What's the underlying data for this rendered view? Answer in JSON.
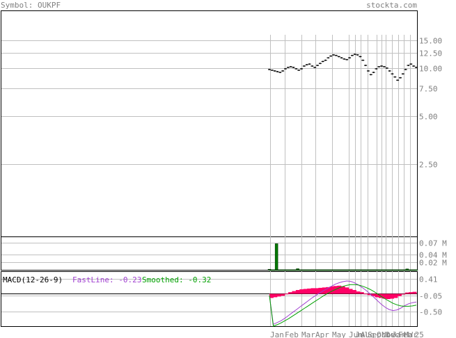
{
  "header": {
    "symbol_text": "Symbol: OUKPF",
    "site_text": "stockta.com"
  },
  "colors": {
    "frame": "#000000",
    "grid": "#c0c0c0",
    "header_text": "#808080",
    "price": "#000000",
    "volume_up": "#007700",
    "macd_hist": "#ff0066",
    "fast_line": "#a040d0",
    "smoothed_line": "#00a000"
  },
  "chart_data": [
    {
      "type": "line",
      "panel": "price",
      "y_ticks": [
        "15.00",
        "12.50",
        "10.00",
        "7.50",
        "5.00",
        "2.50"
      ],
      "y_tick_values": [
        15.0,
        12.5,
        10.0,
        7.5,
        5.0,
        2.5
      ],
      "ylim": [
        0.9,
        16.5
      ],
      "y_scale": "log",
      "x_labels": [
        "Jan",
        "Feb",
        "Mar",
        "Apr",
        "May",
        "Jun",
        "Jul",
        "Aug",
        "Sep",
        "Oct",
        "Nov",
        "Dec",
        "Jan",
        "Feb",
        "Mar",
        "'25"
      ],
      "series": [
        {
          "values": [
            9.8,
            9.7,
            9.6,
            9.5,
            9.4,
            9.6,
            9.9,
            10.1,
            10.2,
            10.1,
            9.9,
            9.7,
            9.9,
            10.3,
            10.5,
            10.6,
            10.3,
            10.1,
            10.4,
            10.7,
            11.0,
            11.2,
            11.6,
            11.9,
            12.1,
            12.0,
            11.8,
            11.6,
            11.4,
            11.3,
            11.6,
            12.0,
            12.2,
            12.1,
            11.8,
            11.2,
            10.4,
            9.6,
            9.1,
            9.4,
            9.9,
            10.2,
            10.3,
            10.2,
            10.0,
            9.6,
            9.2,
            8.8,
            8.4,
            8.7,
            9.2,
            9.8,
            10.4,
            10.6,
            10.3,
            10.1
          ]
        }
      ]
    },
    {
      "type": "bar",
      "panel": "volume",
      "y_ticks": [
        "0.07 M",
        "0.04 M",
        "0.02 M"
      ],
      "y_tick_values": [
        0.07,
        0.04,
        0.02
      ],
      "ylim": [
        0,
        0.085
      ],
      "values": [
        0.0015,
        0.0002,
        0.0002,
        0.0002,
        0.0002,
        0.0002,
        0.0002,
        0.0002,
        0.0002,
        0.0002,
        0.068,
        0.0002,
        0.0002,
        0.0002,
        0.0002,
        0.0002,
        0.0002,
        0.0002,
        0.0002,
        0.0002,
        0.0002,
        0.0002,
        0.0002,
        0.0002,
        0.0002,
        0.0002,
        0.0002,
        0.0002,
        0.0002,
        0.0002,
        0.0002,
        0.0002,
        0.0002,
        0.0002,
        0.0002,
        0.0002,
        0.0002,
        0.0002,
        0.0002,
        0.0002,
        0.003,
        0.0002,
        0.0002,
        0.0002,
        0.0002,
        0.0002,
        0.0002,
        0.0002,
        0.0002,
        0.0002,
        0.0002,
        0.0002,
        0.0002,
        0.0002,
        0.0002,
        0.0002,
        0.0002,
        0.0002,
        0.0002,
        0.0002,
        0.0002,
        0.0002,
        0.0002,
        0.0002,
        0.0002,
        0.0002,
        0.0002,
        0.0002,
        0.0002,
        0.0002,
        0.0002,
        0.0002,
        0.0002,
        0.0002,
        0.0002,
        0.0002,
        0.0002,
        0.0002,
        0.0002,
        0.0002,
        0.0002,
        0.0002,
        0.0002,
        0.0002,
        0.0002,
        0.0002,
        0.0002,
        0.0002,
        0.0002,
        0.0002,
        0.0002,
        0.0002,
        0.0002,
        0.0002,
        0.0002,
        0.0002,
        0.0002,
        0.0002,
        0.0002,
        0.0002,
        0.0002,
        0.0002,
        0.0002,
        0.0002,
        0.0002,
        0.0002,
        0.0002,
        0.0002,
        0.0002,
        0.0002,
        0.0002,
        0.0002,
        0.0002,
        0.0002,
        0.0002,
        0.0002,
        0.0002,
        0.0002,
        0.0002,
        0.0002,
        0.0002,
        0.0002,
        0.0002,
        0.0002,
        0.0002,
        0.0002,
        0.0002,
        0.0002,
        0.0002,
        0.0002,
        0.0002,
        0.0002,
        0.0002,
        0.0002,
        0.0002,
        0.0002,
        0.0002,
        0.0002,
        0.0002,
        0.0002,
        0.0002,
        0.0002,
        0.0002,
        0.0002,
        0.0002,
        0.0002,
        0.0002,
        0.0002,
        0.0002,
        0.0002,
        0.0002,
        0.0002,
        0.0002,
        0.0002,
        0.0002,
        0.0002,
        0.0002,
        0.0002,
        0.0002,
        0.0002,
        0.0002,
        0.0002,
        0.0002,
        0.0002,
        0.0002,
        0.0002,
        0.0002,
        0.0002,
        0.0002,
        0.0002,
        0.0002,
        0.0002,
        0.0002,
        0.0002,
        0.0002,
        0.0002,
        0.0002,
        0.0002,
        0.0002,
        0.0002,
        0.0002,
        0.0002,
        0.0002,
        0.0002,
        0.0002,
        0.0002,
        0.0002,
        0.0002,
        0.0002,
        0.0002,
        0.0002,
        0.0002,
        0.0002,
        0.0002,
        0.0002,
        0.0025,
        0.0002,
        0.0002,
        0.0002,
        0.0002,
        0.0002,
        0.0002,
        0.0002,
        0.0002,
        0.0002,
        0.0002,
        0.0002,
        0.0002,
        0.0002
      ]
    },
    {
      "type": "line",
      "panel": "macd",
      "title": "MACD(12-26-9)",
      "legend": [
        {
          "label": "FastLine: -0.23",
          "color": "#a040d0"
        },
        {
          "label": "Smoothed: -0.32",
          "color": "#00a000"
        }
      ],
      "y_ticks": [
        "0.41",
        "-0.05",
        "-0.50"
      ],
      "y_tick_values": [
        0.41,
        -0.05,
        -0.5
      ],
      "zero_line": 0.0,
      "ylim": [
        -0.9,
        0.6
      ],
      "series": [
        {
          "name": "FastLine",
          "values": [
            -0.05,
            -0.85,
            -0.8,
            -0.75,
            -0.68,
            -0.6,
            -0.52,
            -0.44,
            -0.36,
            -0.28,
            -0.2,
            -0.12,
            -0.05,
            0.02,
            0.08,
            0.14,
            0.2,
            0.26,
            0.3,
            0.33,
            0.35,
            0.34,
            0.3,
            0.24,
            0.17,
            0.09,
            0.0,
            -0.1,
            -0.2,
            -0.3,
            -0.38,
            -0.44,
            -0.47,
            -0.45,
            -0.4,
            -0.33,
            -0.28,
            -0.25,
            -0.23
          ]
        },
        {
          "name": "Smoothed",
          "values": [
            -0.05,
            -0.9,
            -0.86,
            -0.81,
            -0.75,
            -0.69,
            -0.62,
            -0.55,
            -0.48,
            -0.41,
            -0.34,
            -0.27,
            -0.2,
            -0.13,
            -0.06,
            0.0,
            0.06,
            0.11,
            0.16,
            0.2,
            0.23,
            0.25,
            0.25,
            0.24,
            0.21,
            0.17,
            0.12,
            0.06,
            -0.01,
            -0.08,
            -0.15,
            -0.21,
            -0.27,
            -0.31,
            -0.34,
            -0.35,
            -0.35,
            -0.34,
            -0.32
          ]
        }
      ],
      "histogram": [
        -0.12,
        -0.1,
        -0.08,
        -0.06,
        0.0,
        0.04,
        0.07,
        0.1,
        0.12,
        0.13,
        0.14,
        0.15,
        0.15,
        0.16,
        0.17,
        0.18,
        0.2,
        0.21,
        0.22,
        0.2,
        0.17,
        0.13,
        0.1,
        0.06,
        0.04,
        0.0,
        -0.04,
        -0.07,
        -0.1,
        -0.12,
        -0.14,
        -0.15,
        -0.14,
        -0.12,
        -0.07,
        -0.02,
        0.03,
        0.04,
        0.05
      ]
    }
  ]
}
